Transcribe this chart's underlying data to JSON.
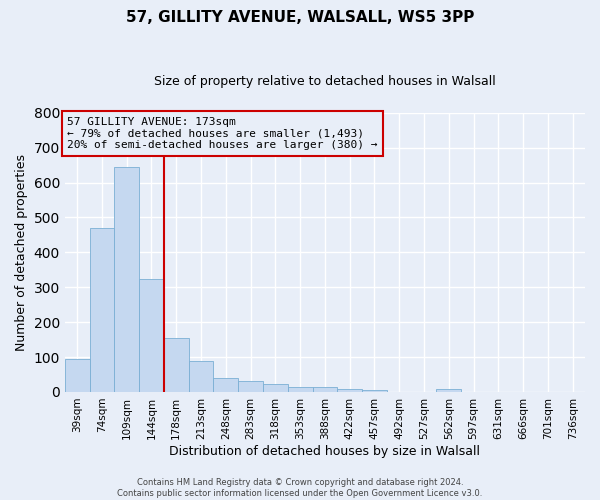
{
  "title": "57, GILLITY AVENUE, WALSALL, WS5 3PP",
  "subtitle": "Size of property relative to detached houses in Walsall",
  "xlabel": "Distribution of detached houses by size in Walsall",
  "ylabel": "Number of detached properties",
  "bar_labels": [
    "39sqm",
    "74sqm",
    "109sqm",
    "144sqm",
    "178sqm",
    "213sqm",
    "248sqm",
    "283sqm",
    "318sqm",
    "353sqm",
    "388sqm",
    "422sqm",
    "457sqm",
    "492sqm",
    "527sqm",
    "562sqm",
    "597sqm",
    "631sqm",
    "666sqm",
    "701sqm",
    "736sqm"
  ],
  "bar_values": [
    95,
    470,
    645,
    325,
    155,
    90,
    40,
    30,
    22,
    15,
    14,
    8,
    5,
    0,
    0,
    8,
    0,
    0,
    0,
    0,
    0
  ],
  "bar_color": "#c5d8f0",
  "bar_edge_color": "#7aafd4",
  "vline_x": 4,
  "vline_color": "#cc0000",
  "ylim": [
    0,
    800
  ],
  "yticks": [
    0,
    100,
    200,
    300,
    400,
    500,
    600,
    700,
    800
  ],
  "annotation_title": "57 GILLITY AVENUE: 173sqm",
  "annotation_line1": "← 79% of detached houses are smaller (1,493)",
  "annotation_line2": "20% of semi-detached houses are larger (380) →",
  "annotation_box_color": "#cc0000",
  "footer_line1": "Contains HM Land Registry data © Crown copyright and database right 2024.",
  "footer_line2": "Contains public sector information licensed under the Open Government Licence v3.0.",
  "background_color": "#e8eef8",
  "grid_color": "#ffffff"
}
